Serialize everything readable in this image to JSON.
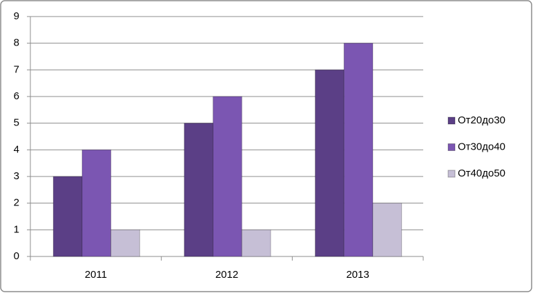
{
  "chart_data": {
    "type": "bar",
    "categories": [
      "2011",
      "2012",
      "2013"
    ],
    "series": [
      {
        "name": "От20до30",
        "color": "#5b3f86",
        "values": [
          3,
          5,
          7
        ]
      },
      {
        "name": "От30до40",
        "color": "#7b56b2",
        "values": [
          4,
          6,
          8
        ]
      },
      {
        "name": "От40до50",
        "color": "#c6bfd6",
        "values": [
          1,
          1,
          2
        ]
      }
    ],
    "ylim": [
      0,
      9
    ],
    "yticks": [
      0,
      1,
      2,
      3,
      4,
      5,
      6,
      7,
      8,
      9
    ],
    "grid": true,
    "legend": "right"
  }
}
